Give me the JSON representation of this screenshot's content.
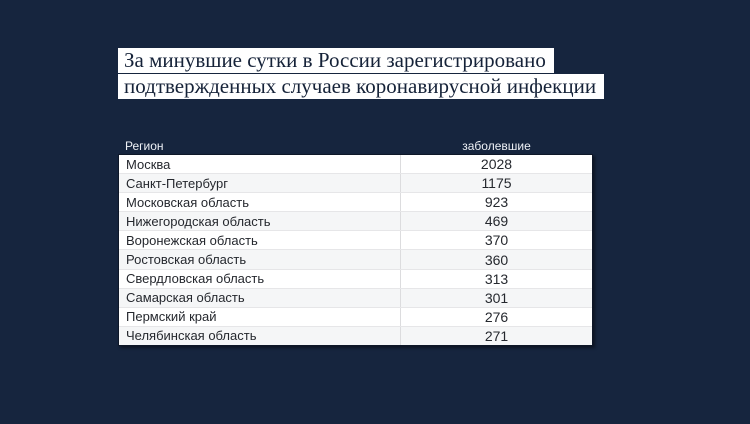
{
  "page": {
    "background_color": "#16253e",
    "highlight_color": "#ffffff",
    "headline_text_color": "#152238",
    "table_text_color": "#25282e"
  },
  "headline": {
    "line1": "За минувшие сутки в России зарегистрировано",
    "line2": "подтвержденных случаев коронавирусной инфекции"
  },
  "table": {
    "header": {
      "region": "Регион",
      "cases": "заболевшие"
    },
    "rows": [
      {
        "region": "Москва",
        "cases": "2028"
      },
      {
        "region": "Санкт-Петербург",
        "cases": "1175"
      },
      {
        "region": "Московская область",
        "cases": "923"
      },
      {
        "region": "Нижегородская область",
        "cases": "469"
      },
      {
        "region": "Воронежская область",
        "cases": "370"
      },
      {
        "region": "Ростовская область",
        "cases": "360"
      },
      {
        "region": "Свердловская область",
        "cases": "313"
      },
      {
        "region": "Самарская область",
        "cases": "301"
      },
      {
        "region": "Пермский край",
        "cases": "276"
      },
      {
        "region": "Челябинская область",
        "cases": "271"
      }
    ]
  },
  "chart_data": {
    "type": "table",
    "title": "За минувшие сутки в России зарегистрировано подтвержденных случаев коронавирусной инфекции",
    "columns": [
      "Регион",
      "заболевшие"
    ],
    "categories": [
      "Москва",
      "Санкт-Петербург",
      "Московская область",
      "Нижегородская область",
      "Воронежская область",
      "Ростовская область",
      "Свердловская область",
      "Самарская область",
      "Пермский край",
      "Челябинская область"
    ],
    "values": [
      2028,
      1175,
      923,
      469,
      370,
      360,
      313,
      301,
      276,
      271
    ],
    "legend_position": "none",
    "grid": "row-separators"
  }
}
